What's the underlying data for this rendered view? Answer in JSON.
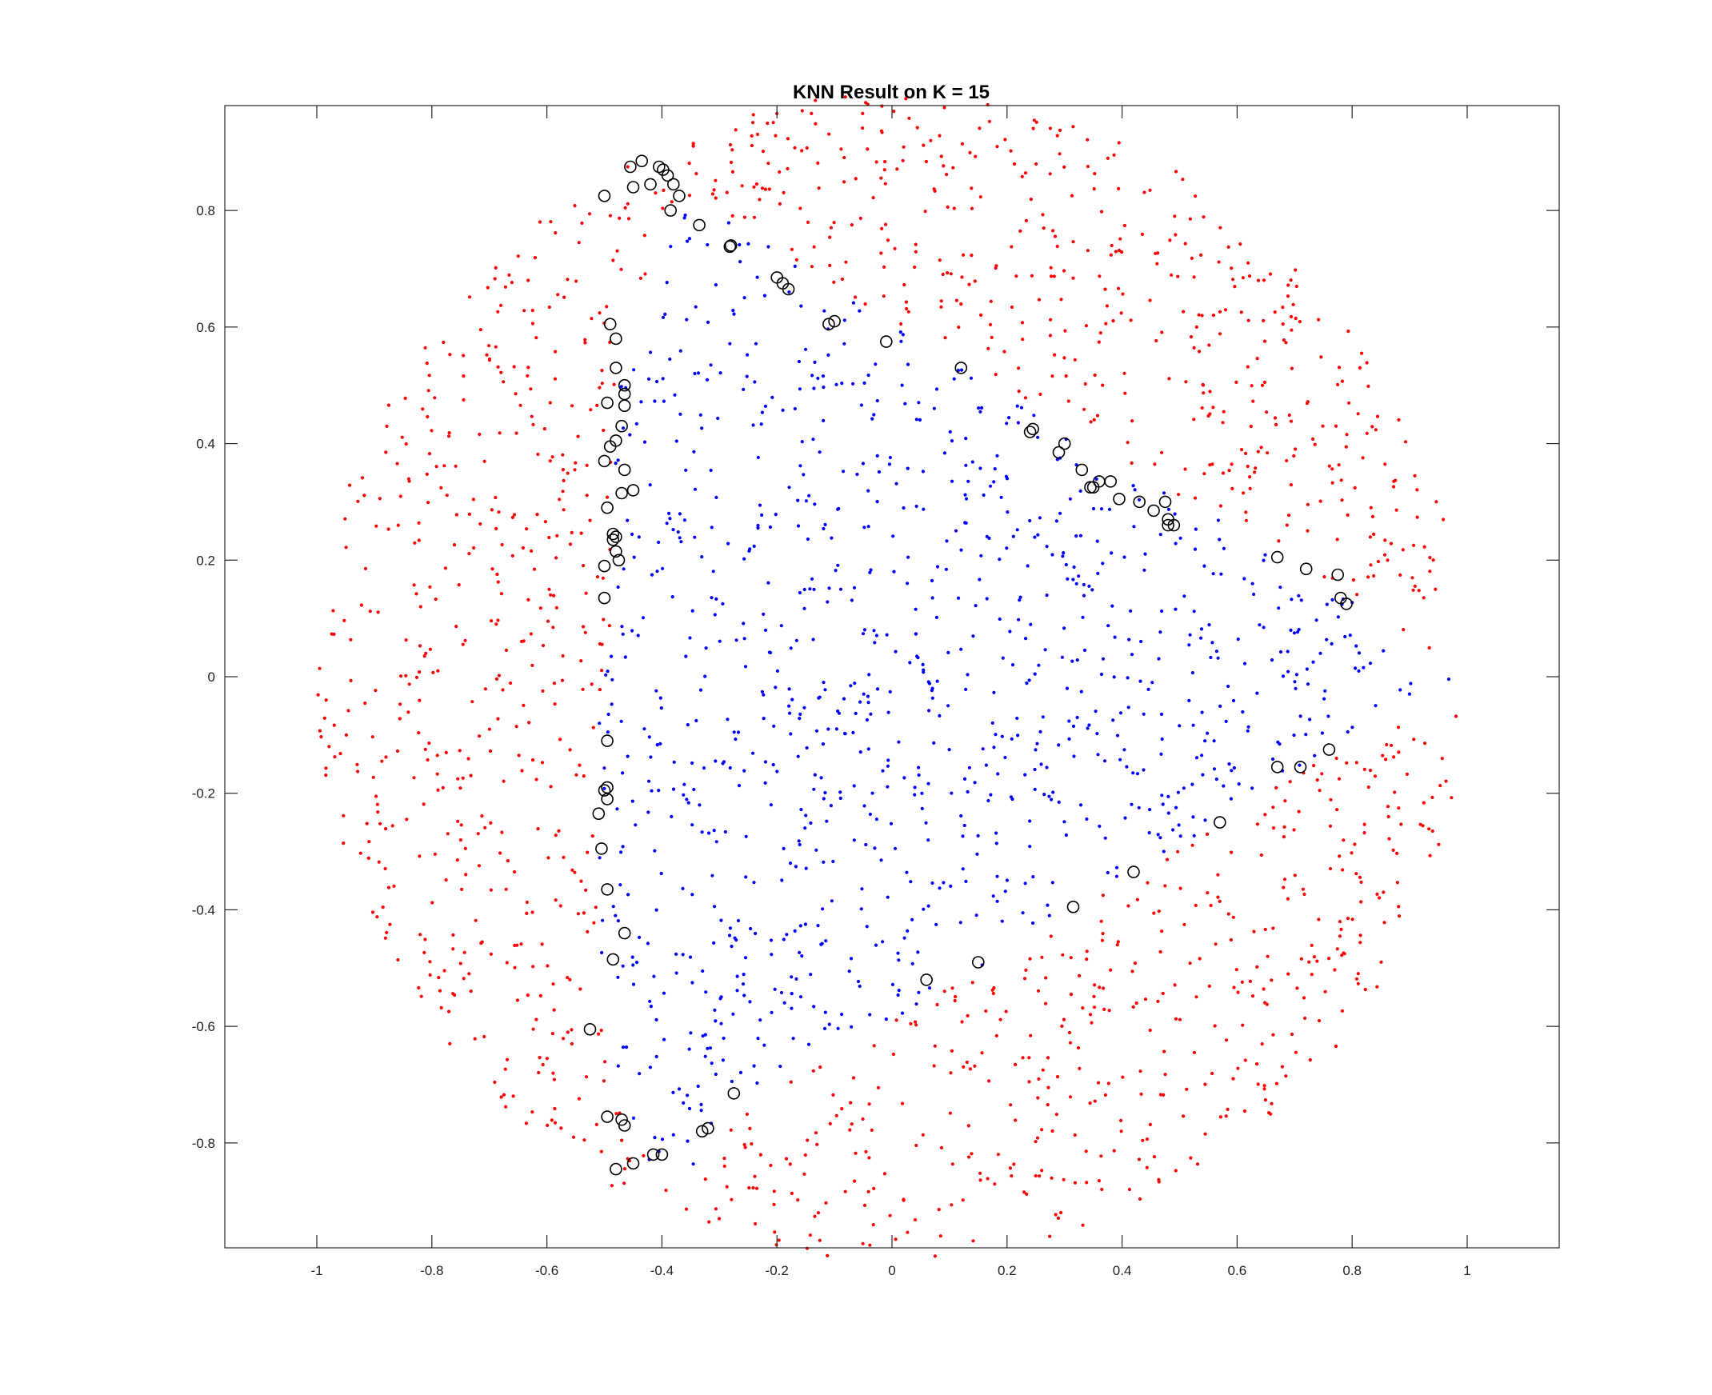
{
  "chart_data": {
    "type": "scatter",
    "title": "KNN Result on K = 15",
    "xlabel": "",
    "ylabel": "",
    "xlim": [
      -1.16,
      1.16
    ],
    "ylim": [
      -0.98,
      0.98
    ],
    "x_ticks": [
      -1,
      -0.8,
      -0.6,
      -0.4,
      -0.2,
      0,
      0.2,
      0.4,
      0.6,
      0.8,
      1
    ],
    "x_tick_labels": [
      "-1",
      "-0.8",
      "-0.6",
      "-0.4",
      "-0.2",
      "0",
      "0.2",
      "0.4",
      "0.6",
      "0.8",
      "1"
    ],
    "y_ticks": [
      -0.8,
      -0.6,
      -0.4,
      -0.2,
      0,
      0.2,
      0.4,
      0.6,
      0.8
    ],
    "y_tick_labels": [
      "-0.8",
      "-0.6",
      "-0.4",
      "-0.2",
      "0",
      "0.2",
      "0.4",
      "0.6",
      "0.8"
    ],
    "grid": false,
    "legend": "none",
    "series": [
      {
        "marker": "dot",
        "color": "#ff0000",
        "region": "outer ring of unit disk; points with x < 0.5·(cos t − 1) + (sin t)^2 scaled, i.e. outside blue region",
        "approx_count": 1300
      },
      {
        "marker": "dot",
        "color": "#0000ff",
        "region": "inner region bounded approximately by x ≈ -0.5 on the left and the unit circle elsewhere, with an upper-right notch",
        "approx_count": 1050
      },
      {
        "marker": "circle",
        "color": "#000000",
        "points": [
          [
            -0.5,
            0.825
          ],
          [
            -0.455,
            0.875
          ],
          [
            -0.45,
            0.84
          ],
          [
            -0.435,
            0.885
          ],
          [
            -0.42,
            0.845
          ],
          [
            -0.405,
            0.875
          ],
          [
            -0.398,
            0.87
          ],
          [
            -0.39,
            0.86
          ],
          [
            -0.38,
            0.845
          ],
          [
            -0.37,
            0.825
          ],
          [
            -0.385,
            0.8
          ],
          [
            -0.335,
            0.775
          ],
          [
            -0.28,
            0.74
          ],
          [
            -0.282,
            0.738
          ],
          [
            -0.2,
            0.685
          ],
          [
            -0.19,
            0.675
          ],
          [
            -0.18,
            0.665
          ],
          [
            -0.11,
            0.605
          ],
          [
            -0.1,
            0.61
          ],
          [
            -0.01,
            0.575
          ],
          [
            0.12,
            0.53
          ],
          [
            0.24,
            0.42
          ],
          [
            0.245,
            0.425
          ],
          [
            0.29,
            0.385
          ],
          [
            0.3,
            0.4
          ],
          [
            0.33,
            0.355
          ],
          [
            0.345,
            0.325
          ],
          [
            0.35,
            0.325
          ],
          [
            0.36,
            0.335
          ],
          [
            0.38,
            0.335
          ],
          [
            0.395,
            0.305
          ],
          [
            0.43,
            0.3
          ],
          [
            0.455,
            0.285
          ],
          [
            0.475,
            0.3
          ],
          [
            0.48,
            0.27
          ],
          [
            0.48,
            0.26
          ],
          [
            0.49,
            0.26
          ],
          [
            0.67,
            0.205
          ],
          [
            0.72,
            0.185
          ],
          [
            0.775,
            0.175
          ],
          [
            0.78,
            0.135
          ],
          [
            0.79,
            0.125
          ],
          [
            -0.49,
            0.605
          ],
          [
            -0.48,
            0.58
          ],
          [
            -0.48,
            0.53
          ],
          [
            -0.465,
            0.5
          ],
          [
            -0.465,
            0.485
          ],
          [
            -0.465,
            0.465
          ],
          [
            -0.495,
            0.47
          ],
          [
            -0.47,
            0.43
          ],
          [
            -0.48,
            0.405
          ],
          [
            -0.49,
            0.395
          ],
          [
            -0.5,
            0.37
          ],
          [
            -0.465,
            0.355
          ],
          [
            -0.47,
            0.315
          ],
          [
            -0.45,
            0.32
          ],
          [
            -0.495,
            0.29
          ],
          [
            -0.485,
            0.245
          ],
          [
            -0.48,
            0.24
          ],
          [
            -0.485,
            0.235
          ],
          [
            -0.48,
            0.215
          ],
          [
            -0.475,
            0.2
          ],
          [
            -0.5,
            0.19
          ],
          [
            -0.5,
            0.135
          ],
          [
            -0.495,
            -0.11
          ],
          [
            -0.495,
            -0.19
          ],
          [
            -0.5,
            -0.195
          ],
          [
            -0.495,
            -0.21
          ],
          [
            -0.51,
            -0.235
          ],
          [
            -0.505,
            -0.295
          ],
          [
            -0.495,
            -0.365
          ],
          [
            -0.465,
            -0.44
          ],
          [
            -0.485,
            -0.485
          ],
          [
            -0.525,
            -0.605
          ],
          [
            -0.495,
            -0.755
          ],
          [
            -0.47,
            -0.76
          ],
          [
            -0.465,
            -0.77
          ],
          [
            -0.48,
            -0.845
          ],
          [
            -0.45,
            -0.835
          ],
          [
            -0.415,
            -0.82
          ],
          [
            -0.4,
            -0.82
          ],
          [
            -0.33,
            -0.78
          ],
          [
            -0.32,
            -0.775
          ],
          [
            -0.275,
            -0.715
          ],
          [
            0.06,
            -0.52
          ],
          [
            0.15,
            -0.49
          ],
          [
            0.315,
            -0.395
          ],
          [
            0.42,
            -0.335
          ],
          [
            0.57,
            -0.25
          ],
          [
            0.67,
            -0.155
          ],
          [
            0.71,
            -0.155
          ],
          [
            0.76,
            -0.125
          ]
        ]
      }
    ]
  }
}
